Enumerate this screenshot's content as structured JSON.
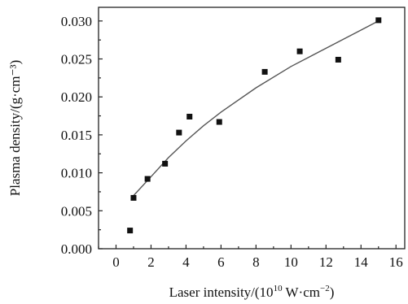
{
  "chart_data": {
    "type": "scatter",
    "xlabel": {
      "prefix": "Laser intensity/(10",
      "superscript": "10",
      "suffix": " W·cm",
      "suffix_superscript": "−2",
      "close": ")"
    },
    "ylabel": "Plasma density/(g·cm⁻³)",
    "xlim": [
      -1,
      16.5
    ],
    "ylim": [
      0,
      0.0318
    ],
    "xticks": [
      {
        "value": 0,
        "label": "0"
      },
      {
        "value": 2,
        "label": "2"
      },
      {
        "value": 4,
        "label": "4"
      },
      {
        "value": 6,
        "label": "6"
      },
      {
        "value": 8,
        "label": "8"
      },
      {
        "value": 10,
        "label": "10"
      },
      {
        "value": 12,
        "label": "12"
      },
      {
        "value": 14,
        "label": "14"
      },
      {
        "value": 16,
        "label": "16"
      }
    ],
    "yticks": [
      {
        "value": 0.0,
        "label": "0.000"
      },
      {
        "value": 0.005,
        "label": "0.005"
      },
      {
        "value": 0.01,
        "label": "0.010"
      },
      {
        "value": 0.015,
        "label": "0.015"
      },
      {
        "value": 0.02,
        "label": "0.020"
      },
      {
        "value": 0.025,
        "label": "0.025"
      },
      {
        "value": 0.03,
        "label": "0.030"
      }
    ],
    "series": [
      {
        "marker": "square",
        "color": "#111111",
        "points": [
          {
            "x": 0.8,
            "y": 0.0024
          },
          {
            "x": 1.0,
            "y": 0.0067
          },
          {
            "x": 1.8,
            "y": 0.0092
          },
          {
            "x": 2.8,
            "y": 0.0112
          },
          {
            "x": 3.6,
            "y": 0.0153
          },
          {
            "x": 4.2,
            "y": 0.0174
          },
          {
            "x": 5.9,
            "y": 0.0167
          },
          {
            "x": 8.5,
            "y": 0.0233
          },
          {
            "x": 10.5,
            "y": 0.026
          },
          {
            "x": 12.7,
            "y": 0.0249
          },
          {
            "x": 15.0,
            "y": 0.0301
          }
        ]
      }
    ],
    "fit_curve": {
      "color": "#555555",
      "points": [
        {
          "x": 1.0,
          "y": 0.007
        },
        {
          "x": 2.0,
          "y": 0.0095
        },
        {
          "x": 3.0,
          "y": 0.012
        },
        {
          "x": 4.0,
          "y": 0.0142
        },
        {
          "x": 5.0,
          "y": 0.0162
        },
        {
          "x": 6.0,
          "y": 0.018
        },
        {
          "x": 8.0,
          "y": 0.0212
        },
        {
          "x": 10.0,
          "y": 0.024
        },
        {
          "x": 12.0,
          "y": 0.0264
        },
        {
          "x": 14.0,
          "y": 0.0288
        },
        {
          "x": 15.0,
          "y": 0.03
        }
      ]
    },
    "grid": false,
    "legend": "none"
  }
}
